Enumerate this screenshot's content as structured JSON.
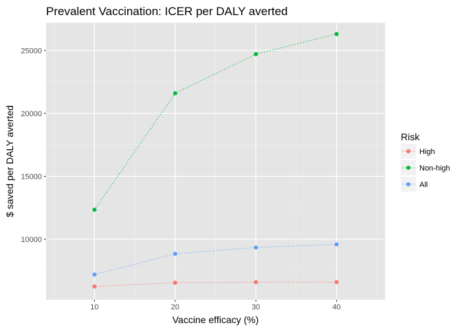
{
  "chart_data": {
    "type": "line",
    "title": "Prevalent Vaccination: ICER per DALY averted",
    "xlabel": "Vaccine efficacy (%)",
    "ylabel": "$ saved per DALY averted",
    "x": [
      10,
      20,
      30,
      40
    ],
    "xlim": [
      4,
      46
    ],
    "ylim": [
      5200,
      27200
    ],
    "x_ticks": [
      10,
      20,
      30,
      40
    ],
    "x_tick_labels": [
      "10",
      "20",
      "30",
      "40"
    ],
    "y_ticks": [
      10000,
      15000,
      20000,
      25000
    ],
    "y_tick_labels": [
      "10000",
      "15000",
      "20000",
      "25000"
    ],
    "grid": true,
    "line_style": "dotted",
    "markers": true,
    "legend": {
      "title": "Risk",
      "position": "right"
    },
    "series": [
      {
        "name": "High",
        "color": "#F8766D",
        "values": [
          6250,
          6550,
          6600,
          6600
        ]
      },
      {
        "name": "Non-high",
        "color": "#00BA38",
        "values": [
          12350,
          21600,
          24700,
          26300
        ]
      },
      {
        "name": "All",
        "color": "#619CFF",
        "values": [
          7200,
          8850,
          9350,
          9600
        ]
      }
    ]
  }
}
